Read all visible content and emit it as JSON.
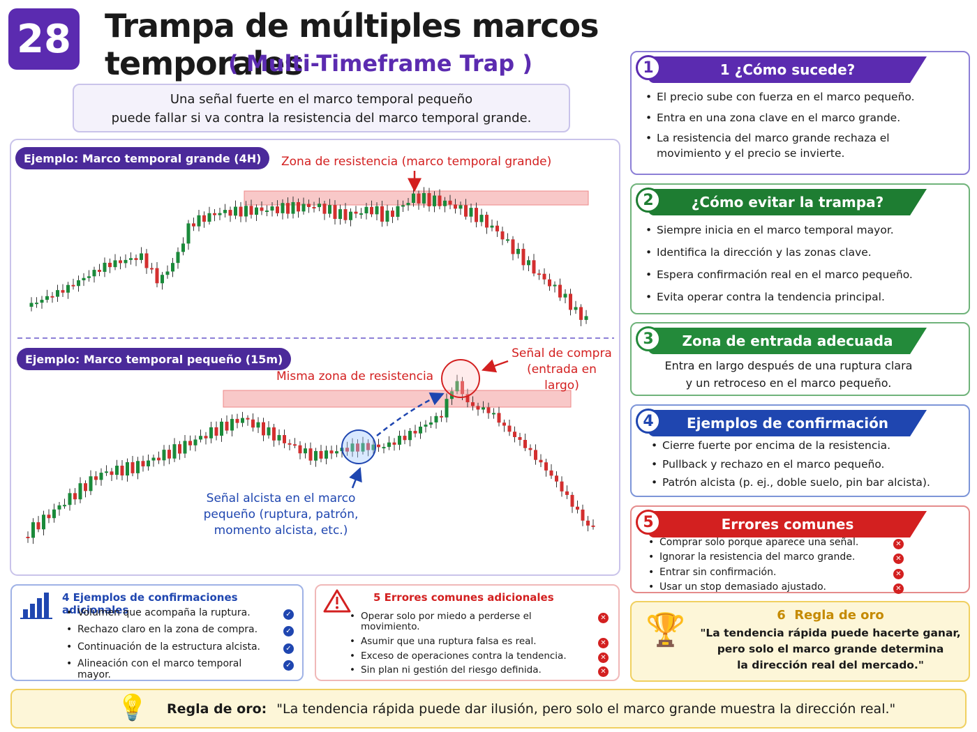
{
  "badge": "28",
  "header": {
    "title": "Trampa de múltiples marcos temporales",
    "subtitle": "( Multi-Timeframe Trap )",
    "summary": [
      "Una señal fuerte en el marco temporal pequeño",
      "puede fallar si va contra la resistencia del marco temporal grande."
    ]
  },
  "examples": {
    "large": {
      "label": "Ejemplo: Marco temporal grande (4H)",
      "zone": "Zona de resistencia (marco temporal grande)"
    },
    "small": {
      "label": "Ejemplo: Marco temporal pequeño (15m)",
      "zone": "Misma zona de resistencia",
      "buy_signal": [
        "Señal de compra",
        "(entrada en largo)"
      ],
      "bull_signal": [
        "Señal alcista en el marco",
        "pequeño (ruptura, patrón,",
        "momento alcista, etc.)"
      ]
    }
  },
  "sections": [
    {
      "number": "1",
      "title": "1 ¿Cómo sucede?",
      "items": [
        "El precio sube con fuerza en el marco pequeño.",
        "Entra en una zona clave en el marco grande.",
        "La resistencia del marco grande rechaza el movimiento y el precio se invierte."
      ]
    },
    {
      "number": "2",
      "title": "¿Cómo evitar la trampa?",
      "items": [
        "Siempre inicia en el marco temporal mayor.",
        "Identifica la dirección y las zonas clave.",
        "Espera confirmación real en el marco pequeño.",
        "Evita operar contra la tendencia principal."
      ]
    },
    {
      "number": "3",
      "title": "Zona de entrada adecuada",
      "text": [
        "Entra en largo después de una ruptura clara",
        "y un retroceso en el marco pequeño."
      ]
    },
    {
      "number": "4",
      "title": "Ejemplos de confirmación",
      "items": [
        "Cierre fuerte por encima de la resistencia.",
        "Pullback y rechazo en el marco pequeño.",
        "Patrón alcista (p. ej., doble suelo, pin bar alcista)."
      ]
    },
    {
      "number": "5",
      "title": "Errores comunes",
      "items": [
        "Comprar solo porque aparece una señal.",
        "Ignorar la resistencia del marco grande.",
        "Entrar sin confirmación.",
        "Usar un stop demasiado ajustado."
      ]
    }
  ],
  "extra_confirmations": {
    "title": "4 Ejemplos de confirmaciones adicionales",
    "items": [
      "Volumen que acompaña la ruptura.",
      "Rechazo claro en la zona de compra.",
      "Continuación de la estructura alcista.",
      "Alineación con el marco temporal mayor."
    ]
  },
  "extra_errors": {
    "title": "5 Errores comunes adicionales",
    "items": [
      "Operar solo por miedo a perderse el movimiento.",
      "Asumir que una ruptura falsa es real.",
      "Exceso de operaciones contra la tendencia.",
      "Sin plan ni gestión del riesgo definida."
    ]
  },
  "golden_rule": {
    "number": "6",
    "title": "Regla de oro",
    "quote": [
      "\"La tendencia rápida puede hacerte ganar,",
      "pero solo el marco grande determina",
      "la dirección real del mercado.\""
    ]
  },
  "footer": {
    "label": "Regla de oro:",
    "quote": "\"La tendencia rápida puede dar ilusión, pero solo el marco grande muestra la dirección real.\""
  }
}
